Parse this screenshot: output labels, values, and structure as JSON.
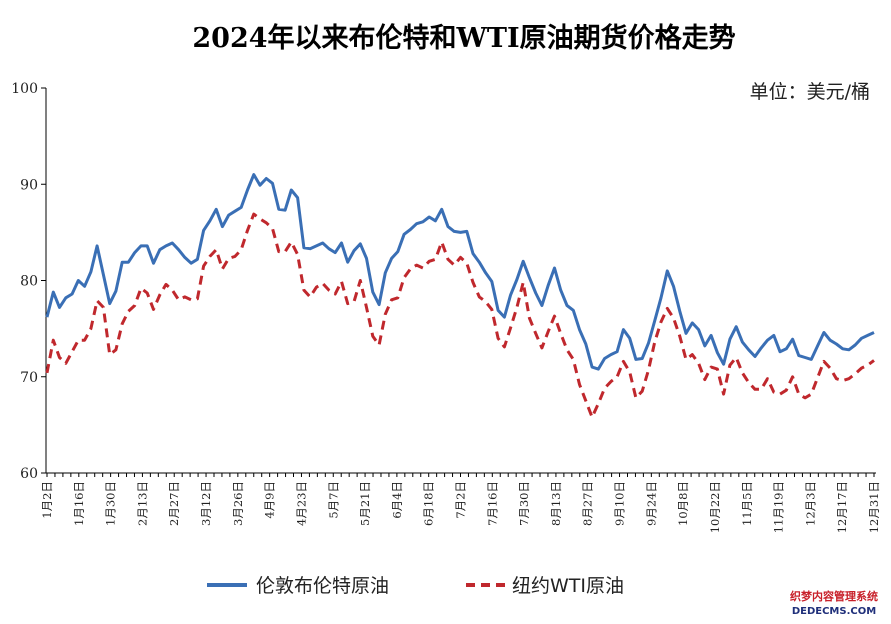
{
  "chart_data": {
    "type": "line",
    "title": "2024年以来布伦特和WTI原油期货价格走势",
    "unit_label": "单位：美元/桶",
    "ylim": [
      60,
      100
    ],
    "yticks": [
      60,
      70,
      80,
      90,
      100
    ],
    "x_tick_labels": [
      "1月2日",
      "1月16日",
      "1月30日",
      "2月13日",
      "2月27日",
      "3月12日",
      "3月26日",
      "4月9日",
      "4月23日",
      "5月7日",
      "5月21日",
      "6月4日",
      "6月18日",
      "7月2日",
      "7月16日",
      "7月30日",
      "8月13日",
      "8月27日",
      "9月10日",
      "9月24日",
      "10月8日",
      "10月22日",
      "11月5日",
      "11月19日",
      "12月3日",
      "12月17日",
      "12月31日"
    ],
    "grid": false,
    "legend_position": "bottom",
    "series": [
      {
        "name": "伦敦布伦特原油",
        "color": "#3a6fb5",
        "style": "solid",
        "values": [
          76.2,
          78.8,
          77.2,
          78.2,
          78.6,
          80.0,
          79.4,
          80.9,
          83.6,
          80.6,
          77.6,
          78.9,
          81.9,
          81.9,
          82.9,
          83.6,
          83.6,
          81.8,
          83.2,
          83.6,
          83.9,
          83.2,
          82.4,
          81.8,
          82.2,
          85.2,
          86.2,
          87.4,
          85.6,
          86.8,
          87.2,
          87.6,
          89.4,
          91.0,
          89.9,
          90.6,
          90.1,
          87.4,
          87.3,
          89.4,
          88.6,
          83.4,
          83.3,
          83.6,
          83.9,
          83.3,
          82.9,
          83.9,
          81.9,
          83.1,
          83.8,
          82.3,
          78.8,
          77.5,
          80.8,
          82.3,
          83.0,
          84.8,
          85.3,
          85.9,
          86.1,
          86.6,
          86.2,
          87.4,
          85.6,
          85.1,
          85.0,
          85.1,
          82.8,
          81.9,
          80.8,
          79.9,
          76.9,
          76.2,
          78.5,
          80.1,
          82.0,
          80.3,
          78.7,
          77.4,
          79.5,
          81.3,
          79.0,
          77.4,
          76.9,
          74.9,
          73.4,
          71.0,
          70.8,
          71.9,
          72.3,
          72.6,
          74.9,
          74.0,
          71.8,
          71.9,
          73.5,
          75.8,
          78.2,
          81.0,
          79.4,
          76.8,
          74.5,
          75.6,
          74.9,
          73.2,
          74.3,
          72.5,
          71.3,
          73.9,
          75.2,
          73.6,
          72.8,
          72.1,
          73.0,
          73.8,
          74.3,
          72.6,
          72.9,
          73.9,
          72.2,
          72.0,
          71.8,
          73.2,
          74.6,
          73.8,
          73.4,
          72.9,
          72.8,
          73.3,
          74.0,
          74.3,
          74.6
        ]
      },
      {
        "name": "纽约WTI原油",
        "color": "#c0282d",
        "style": "dashed",
        "values": [
          70.4,
          73.8,
          72.0,
          71.4,
          72.6,
          73.8,
          73.8,
          75.0,
          77.9,
          77.2,
          72.3,
          72.8,
          75.5,
          76.8,
          77.4,
          79.2,
          78.7,
          77.0,
          78.5,
          79.6,
          79.0,
          78.0,
          78.3,
          78.0,
          78.1,
          81.5,
          82.5,
          83.2,
          81.2,
          82.3,
          82.5,
          83.2,
          85.2,
          86.9,
          86.4,
          86.0,
          85.4,
          83.0,
          83.0,
          84.0,
          82.7,
          79.0,
          78.3,
          79.3,
          79.7,
          79.0,
          78.6,
          79.9,
          77.6,
          77.8,
          80.0,
          77.2,
          74.2,
          73.3,
          76.5,
          78.0,
          78.2,
          80.3,
          81.2,
          81.6,
          81.3,
          82.0,
          82.2,
          84.0,
          82.2,
          81.6,
          82.4,
          81.8,
          79.8,
          78.3,
          77.8,
          77.0,
          74.0,
          73.1,
          75.1,
          77.2,
          79.8,
          76.1,
          74.5,
          73.0,
          74.7,
          76.3,
          74.5,
          72.8,
          71.8,
          69.2,
          67.5,
          65.8,
          67.2,
          68.8,
          69.5,
          70.0,
          71.6,
          70.5,
          67.8,
          68.5,
          70.7,
          73.6,
          75.7,
          77.1,
          76.1,
          74.2,
          71.8,
          72.3,
          71.4,
          69.7,
          71.0,
          70.8,
          68.2,
          71.2,
          72.0,
          70.4,
          69.4,
          68.7,
          68.7,
          69.8,
          68.4,
          68.2,
          68.6,
          70.0,
          68.2,
          67.8,
          68.2,
          69.9,
          71.6,
          70.9,
          69.8,
          69.6,
          69.8,
          70.3,
          70.9,
          71.2,
          71.7
        ]
      }
    ]
  },
  "legend": {
    "brent_label": "伦敦布伦特原油",
    "wti_label": "纽约WTI原油"
  },
  "watermark": {
    "chinese": "织梦内容管理系统",
    "english": "DEDECMS.COM"
  }
}
